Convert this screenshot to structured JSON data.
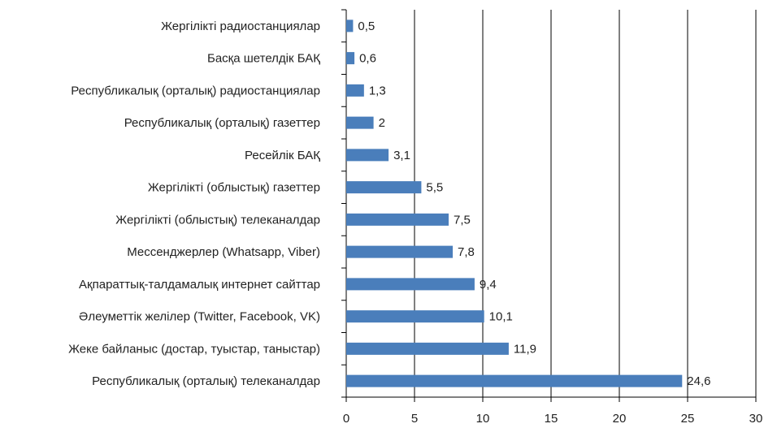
{
  "chart_data": {
    "type": "hbar",
    "categories": [
      "Жергілікті радиостанциялар",
      "Басқа шетелдік БАҚ",
      "Республикалық (орталық) радиостанциялар",
      "Республикалық (орталық) газеттер",
      "Ресейлік БАҚ",
      "Жергілікті (облыстық) газеттер",
      "Жергілікті (облыстық) телеканалдар",
      "Мессенджерлер (Whatsapp, Viber)",
      "Ақпараттық-талдамалық интернет сайттар",
      "Әлеуметтік желілер (Twitter, Facebook, VK)",
      "Жеке байланыс (достар, туыстар, таныстар)",
      "Республикалық (орталық) телеканалдар"
    ],
    "values": [
      0.5,
      0.6,
      1.3,
      2,
      3.1,
      5.5,
      7.5,
      7.8,
      9.4,
      10.1,
      11.9,
      24.6
    ],
    "value_labels": [
      "0,5",
      "0,6",
      "1,3",
      "2",
      "3,1",
      "5,5",
      "7,5",
      "7,8",
      "9,4",
      "10,1",
      "11,9",
      "24,6"
    ],
    "color": "#4a7ebb",
    "xlim": [
      0,
      30
    ],
    "xticks": [
      0,
      5,
      10,
      15,
      20,
      25,
      30
    ],
    "grid": true
  }
}
